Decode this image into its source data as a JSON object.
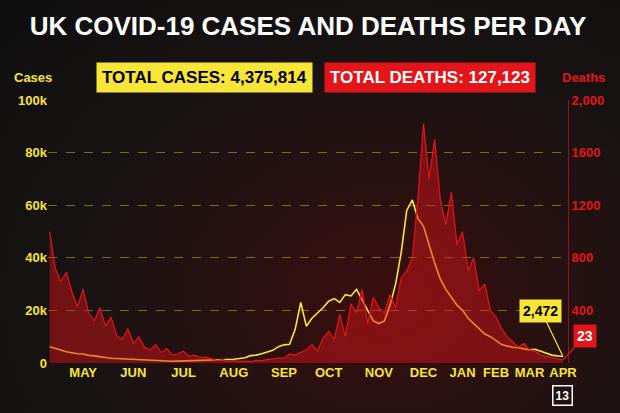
{
  "chart_data": {
    "type": "line",
    "title": "UK COVID-19 CASES AND DEATHS PER DAY",
    "categories": [
      null,
      null,
      null,
      null,
      null,
      null,
      "MAY",
      null,
      null,
      null,
      null,
      null,
      null,
      null,
      null,
      "JUN",
      null,
      null,
      null,
      null,
      null,
      null,
      null,
      null,
      "JUL",
      null,
      null,
      null,
      null,
      null,
      null,
      null,
      null,
      "AUG",
      null,
      null,
      null,
      null,
      null,
      null,
      null,
      null,
      "SEP",
      null,
      null,
      null,
      null,
      null,
      null,
      null,
      "OCT",
      null,
      null,
      null,
      null,
      null,
      null,
      null,
      null,
      "NOV",
      null,
      null,
      null,
      null,
      null,
      null,
      null,
      "DEC",
      null,
      null,
      null,
      null,
      null,
      null,
      "JAN",
      null,
      null,
      null,
      null,
      null,
      "FEB",
      null,
      null,
      null,
      null,
      null,
      "MAR",
      null,
      null,
      null,
      null,
      null,
      "APR"
    ],
    "series": [
      {
        "name": "Cases",
        "type": "line",
        "color": "#f7e538",
        "values": [
          6200,
          5600,
          4800,
          4300,
          3900,
          3500,
          3400,
          2900,
          2700,
          2300,
          2100,
          1800,
          1700,
          1500,
          1300,
          1200,
          1100,
          1000,
          900,
          850,
          750,
          700,
          650,
          700,
          750,
          800,
          780,
          850,
          950,
          1000,
          1100,
          1200,
          1300,
          1400,
          1700,
          2000,
          2800,
          3000,
          3500,
          4200,
          4800,
          6200,
          6900,
          7100,
          12800,
          23000,
          14000,
          17000,
          19000,
          21000,
          23500,
          24500,
          23000,
          26000,
          25500,
          28000,
          24000,
          20000,
          16000,
          15000,
          16000,
          22000,
          30000,
          42000,
          58000,
          62000,
          55000,
          52000,
          45000,
          38000,
          32000,
          28000,
          25000,
          22000,
          20000,
          17000,
          15000,
          13000,
          11000,
          10000,
          8500,
          7000,
          6500,
          6000,
          5800,
          5400,
          5000,
          5200,
          4500,
          3800,
          3000,
          2700,
          2472
        ]
      },
      {
        "name": "Deaths",
        "type": "area",
        "color": "#e3151a",
        "axis": "y2",
        "values": [
          1000,
          720,
          620,
          690,
          540,
          430,
          560,
          380,
          320,
          420,
          280,
          350,
          210,
          180,
          260,
          150,
          200,
          120,
          100,
          140,
          80,
          110,
          60,
          70,
          90,
          50,
          60,
          40,
          45,
          30,
          20,
          25,
          12,
          18,
          10,
          15,
          10,
          20,
          18,
          25,
          30,
          40,
          35,
          70,
          60,
          80,
          100,
          140,
          90,
          190,
          240,
          180,
          370,
          200,
          450,
          380,
          560,
          300,
          500,
          420,
          380,
          520,
          420,
          650,
          700,
          800,
          1250,
          1820,
          1400,
          1700,
          1250,
          1050,
          1300,
          900,
          1000,
          700,
          800,
          550,
          600,
          400,
          350,
          260,
          200,
          160,
          120,
          150,
          100,
          90,
          60,
          50,
          40,
          30,
          23
        ]
      }
    ],
    "ylim": [
      0,
      100000
    ],
    "yticks": [
      0,
      {
        "value": 20000,
        "label": "20k"
      },
      {
        "value": 40000,
        "label": "40k"
      },
      {
        "value": 60000,
        "label": "60k"
      },
      {
        "value": 80000,
        "label": "80k"
      },
      {
        "value": 100000,
        "label": "100k"
      }
    ],
    "y2lim": [
      0,
      2000
    ],
    "y2ticks": [
      400,
      800,
      1200,
      1600,
      {
        "value": 2000,
        "label": "2,000"
      }
    ],
    "grid": true,
    "annotations": [
      {
        "text": "TOTAL CASES: 4,375,814"
      },
      {
        "text": "TOTAL DEATHS: 127,123",
        "axis": "y2"
      },
      {
        "text": "2,472",
        "x": 92,
        "y": 2472
      },
      {
        "text": "23",
        "x": 92,
        "y": 23,
        "axis": "y2"
      },
      {
        "text": "13",
        "x": 92
      }
    ]
  }
}
